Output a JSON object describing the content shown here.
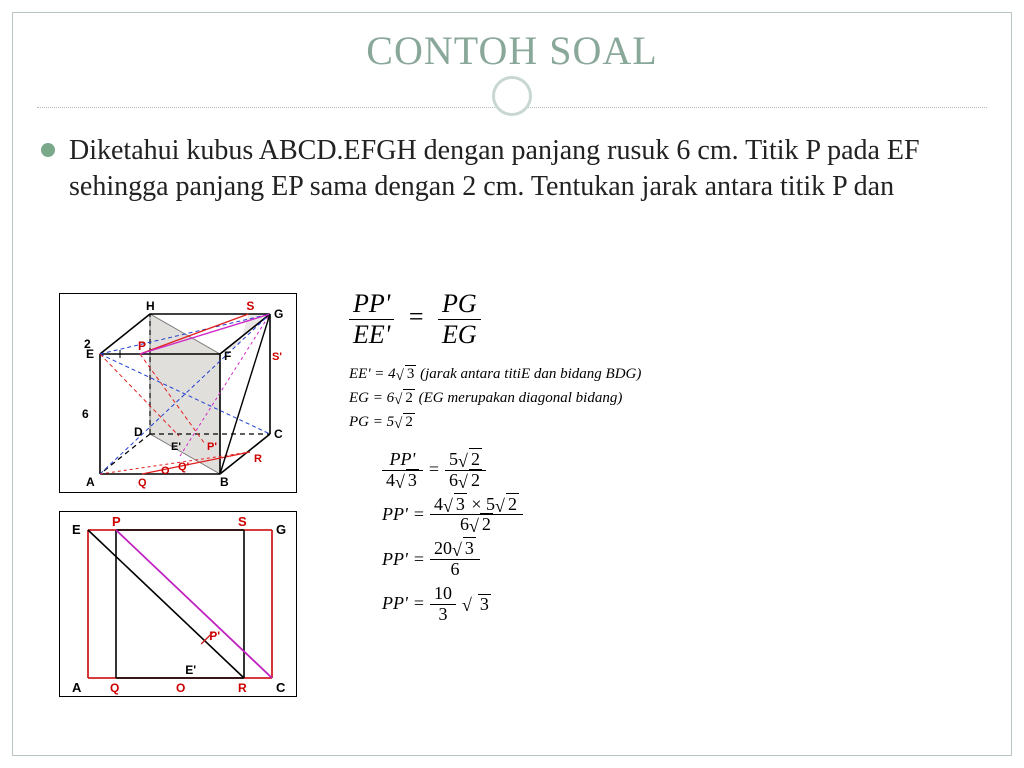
{
  "title": "CONTOH SOAL",
  "bullet": "Diketahui kubus ABCD.EFGH dengan panjang rusuk 6 cm. Titik P pada EF sehingga panjang EP sama dengan 2 cm. Tentukan jarak antara titik P dan",
  "cube": {
    "labels": {
      "A": "A",
      "B": "B",
      "C": "C",
      "D": "D",
      "E": "E",
      "F": "F",
      "G": "G",
      "H": "H",
      "P": "P",
      "S": "S",
      "S1": "S'",
      "E1": "E'",
      "P1": "P'",
      "O": "O",
      "Q": "Q",
      "Q1": "Q'",
      "R": "R",
      "two": "2",
      "six": "6"
    },
    "colors": {
      "edge": "#000000",
      "dash": "#000000",
      "plane_fill": "#c9c5c0",
      "plane_fill_opacity": 0.55,
      "red": "#e22020",
      "magenta": "#d028c8",
      "blue": "#2040d0",
      "label_red": "#cc0000",
      "label_black": "#000000"
    }
  },
  "plan": {
    "labels": {
      "A": "A",
      "C": "C",
      "E": "E",
      "G": "G",
      "P": "P",
      "S": "S",
      "Q": "Q",
      "O": "O",
      "R": "R",
      "E1": "E'",
      "P1": "P'"
    },
    "colors": {
      "outer": "#d02020",
      "inner": "#000000",
      "mag": "#c020c0",
      "label_red": "#cc0000",
      "label_black": "#000000"
    }
  },
  "eq": {
    "top": {
      "l_n": "PP'",
      "l_d": "EE'",
      "eq": "=",
      "r_n": "PG",
      "r_d": "EG"
    },
    "lines": {
      "l1_a": "EE' = 4",
      "l1_b": "3",
      "l1_c": " (jarak antara titiE dan bidang BDG)",
      "l2_a": "EG = 6",
      "l2_b": "2",
      "l2_c": " (EG merupakan diagonal bidang)",
      "l3_a": "PG = 5",
      "l3_b": "2"
    },
    "calc": {
      "r1_ln": "PP'",
      "r1_ld_a": "4",
      "r1_ld_b": "3",
      "r1_rn_a": "5",
      "r1_rn_b": "2",
      "r1_rd_a": "6",
      "r1_rd_b": "2",
      "r2_l": "PP'",
      "r2_rn_a": "4",
      "r2_rn_b": "3",
      "r2_rn_c": " × 5",
      "r2_rn_d": "2",
      "r2_rd_a": "6",
      "r2_rd_b": "2",
      "r3_l": "PP'",
      "r3_rn_a": "20",
      "r3_rn_b": "3",
      "r3_rd": "6",
      "r4_l": "PP'",
      "r4_rn": "10",
      "r4_rd": "3",
      "r4_t": "3"
    }
  }
}
